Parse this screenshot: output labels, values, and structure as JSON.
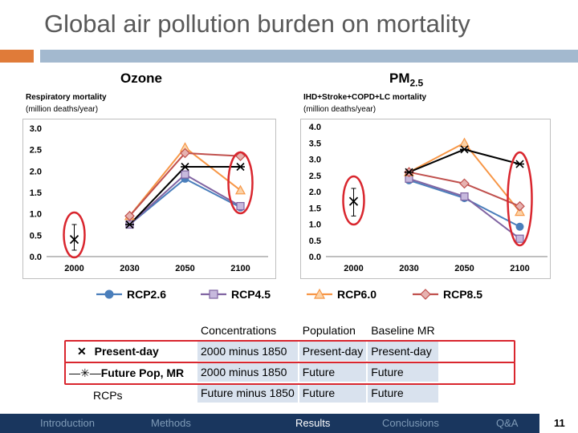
{
  "slide": {
    "title": "Global air pollution burden on mortality",
    "page_number": "11"
  },
  "panels": {
    "ozone": {
      "heading": "Ozone",
      "ylabel_main": "Respiratory mortality",
      "ylabel_unit": "(million deaths/year)"
    },
    "pm": {
      "heading_main": "PM",
      "heading_sub": "2.5",
      "ylabel_main": "IHD+Stroke+COPD+LC mortality",
      "ylabel_unit": "(million deaths/year)"
    }
  },
  "chart_data": [
    {
      "type": "line",
      "title": "Ozone",
      "ylabel": "Respiratory mortality (million deaths/year)",
      "x": [
        "2000",
        "2030",
        "2050",
        "2100"
      ],
      "ylim": [
        0,
        3.0
      ],
      "yticks": [
        "0.0",
        "0.5",
        "1.0",
        "1.5",
        "2.0",
        "2.5",
        "3.0"
      ],
      "point_2000": {
        "value": 0.4,
        "err_low": 0.15,
        "err_high": 0.75,
        "marker": "x"
      },
      "series": [
        {
          "name": "RCP2.6",
          "color": "#4A7EBB",
          "marker": "circle",
          "values": [
            null,
            0.75,
            1.82,
            1.15
          ]
        },
        {
          "name": "RCP4.5",
          "color": "#8064A2",
          "marker": "square",
          "values": [
            null,
            0.75,
            1.92,
            1.18
          ]
        },
        {
          "name": "RCP6.0",
          "color": "#F79646",
          "marker": "triangle",
          "values": [
            null,
            0.95,
            2.55,
            1.55
          ]
        },
        {
          "name": "RCP8.5",
          "color": "#C0504D",
          "marker": "diamond",
          "values": [
            null,
            0.95,
            2.42,
            2.35
          ]
        },
        {
          "name": "Future Pop, MR",
          "color": "#000000",
          "marker": "asterisk",
          "values": [
            null,
            0.75,
            2.1,
            2.1
          ]
        }
      ]
    },
    {
      "type": "line",
      "title": "PM2.5",
      "ylabel": "IHD+Stroke+COPD+LC mortality (million deaths/year)",
      "x": [
        "2000",
        "2030",
        "2050",
        "2100"
      ],
      "ylim": [
        0,
        4.0
      ],
      "yticks": [
        "0.0",
        "0.5",
        "1.0",
        "1.5",
        "2.0",
        "2.5",
        "3.0",
        "3.5",
        "4.0"
      ],
      "point_2000": {
        "value": 1.7,
        "err_low": 1.25,
        "err_high": 2.1,
        "marker": "x"
      },
      "series": [
        {
          "name": "RCP2.6",
          "color": "#4A7EBB",
          "marker": "circle",
          "values": [
            null,
            2.35,
            1.8,
            0.92
          ]
        },
        {
          "name": "RCP4.5",
          "color": "#8064A2",
          "marker": "square",
          "values": [
            null,
            2.4,
            1.85,
            0.55
          ]
        },
        {
          "name": "RCP6.0",
          "color": "#F79646",
          "marker": "triangle",
          "values": [
            null,
            2.6,
            3.5,
            1.38
          ]
        },
        {
          "name": "RCP8.5",
          "color": "#C0504D",
          "marker": "diamond",
          "values": [
            null,
            2.6,
            2.25,
            1.55
          ]
        },
        {
          "name": "Future Pop, MR",
          "color": "#000000",
          "marker": "asterisk",
          "values": [
            null,
            2.6,
            3.3,
            2.85
          ]
        }
      ]
    }
  ],
  "legend": {
    "items": [
      {
        "label": "RCP2.6",
        "color": "#4A7EBB",
        "marker": "circle"
      },
      {
        "label": "RCP4.5",
        "color": "#8064A2",
        "marker": "square"
      },
      {
        "label": "RCP6.0",
        "color": "#F79646",
        "marker": "triangle"
      },
      {
        "label": "RCP8.5",
        "color": "#C0504D",
        "marker": "diamond"
      }
    ]
  },
  "table": {
    "headers": [
      "Concentrations",
      "Population",
      "Baseline MR"
    ],
    "rows": [
      {
        "label": "Present-day",
        "cells": [
          "2000 minus 1850",
          "Present-day",
          "Present-day"
        ]
      },
      {
        "label": "Future Pop, MR",
        "cells": [
          "2000 minus 1850",
          "Future",
          "Future"
        ]
      },
      {
        "label": "RCPs",
        "cells": [
          "Future minus 1850",
          "Future",
          "Future"
        ]
      }
    ]
  },
  "nav": {
    "items": [
      "Introduction",
      "Methods",
      "Results",
      "Conclusions",
      "Q&A"
    ],
    "active": "Results"
  },
  "colors": {
    "accent_orange": "#E07B39",
    "accent_blue": "#A3B9CF",
    "nav_bg": "#19365E",
    "highlight_red": "#D9262E",
    "table_cell": "#D9E2EE"
  }
}
